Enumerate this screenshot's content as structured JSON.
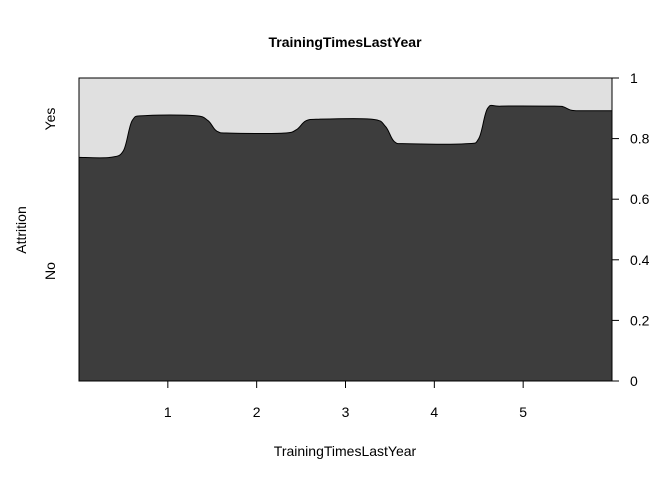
{
  "chart_data": {
    "type": "area",
    "subtype": "conditional-density (spinogram-style) plot",
    "title": "TrainingTimesLastYear",
    "xlabel": "TrainingTimesLastYear",
    "ylabel": "Attrition",
    "y_categories": [
      "No",
      "Yes"
    ],
    "x_ticks": [
      1,
      2,
      3,
      4,
      5
    ],
    "xlim": [
      0,
      6
    ],
    "y_right_ticks": [
      "0",
      "0.2",
      "0.4",
      "0.6",
      "0.8",
      "1"
    ],
    "ylim": [
      0,
      1
    ],
    "colors": {
      "No": "#3d3d3d",
      "Yes": "#e0e0e0"
    },
    "series": [
      {
        "name": "No",
        "x": [
          0,
          0.35,
          0.5,
          0.6,
          0.75,
          1.3,
          1.45,
          1.55,
          1.7,
          2.3,
          2.45,
          2.55,
          2.7,
          3.3,
          3.45,
          3.55,
          3.7,
          4.35,
          4.5,
          4.6,
          4.75,
          5.35,
          5.45,
          5.55,
          5.7,
          6.0
        ],
        "values": [
          0.738,
          0.738,
          0.76,
          0.86,
          0.876,
          0.876,
          0.86,
          0.825,
          0.818,
          0.818,
          0.83,
          0.858,
          0.864,
          0.864,
          0.84,
          0.79,
          0.783,
          0.783,
          0.8,
          0.9,
          0.907,
          0.907,
          0.905,
          0.893,
          0.892,
          0.892
        ]
      }
    ]
  }
}
